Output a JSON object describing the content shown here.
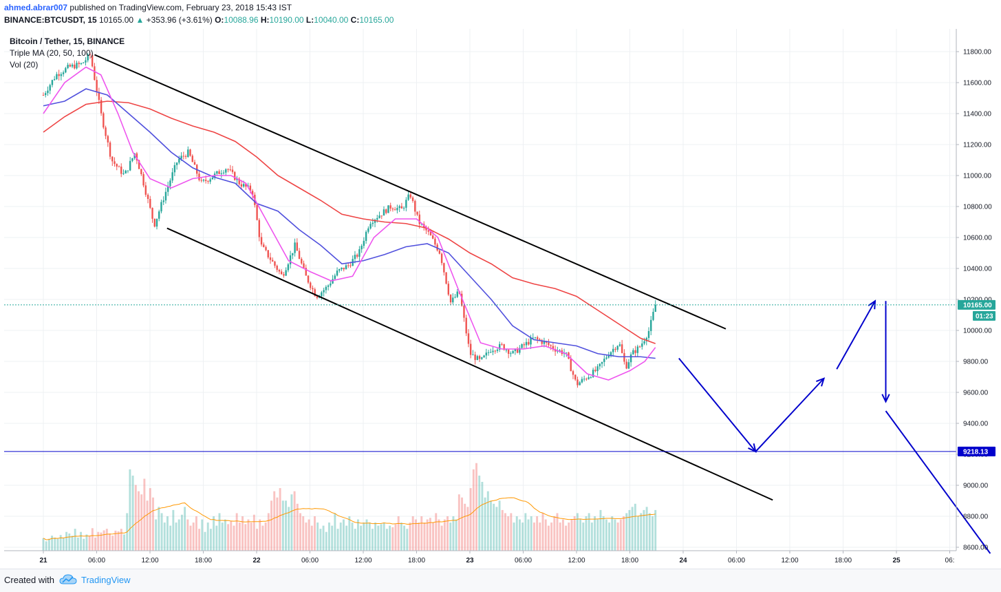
{
  "header": {
    "author": "ahmed.abrar007",
    "published": "published on TradingView.com, February 23, 2018 15:43 IST",
    "symbol": "BINANCE:BTCUSDT, 15",
    "last": "10165.00",
    "change_arrow": "▲",
    "change": "+353.96 (+3.61%)",
    "o_label": "O:",
    "o": "10088.96",
    "h_label": "H:",
    "h": "10190.00",
    "l_label": "L:",
    "l": "10040.00",
    "c_label": "C:",
    "c": "10165.00"
  },
  "footer": {
    "created_with": "Created with",
    "brand": "TradingView",
    "logo_icon": "tradingview-cloud-icon"
  },
  "colors": {
    "up": "#26a69a",
    "down": "#ef5350",
    "ma20": "#ee55ee",
    "ma50": "#5050dd",
    "ma100": "#ee4444",
    "channel": "#000000",
    "projection": "#0000cc",
    "price_line": "#26a69a",
    "support_line": "#0000cc"
  },
  "chart_data": {
    "type": "candlestick",
    "title": "Bitcoin / Tether, 15, BINANCE",
    "legend": [
      "Bitcoin / Tether, 15, BINANCE",
      "Triple MA (20, 50, 100)",
      "Vol (20)"
    ],
    "ylim": [
      8550,
      11900
    ],
    "y_ticks": [
      "11800.00",
      "11600.00",
      "11400.00",
      "11200.00",
      "11000.00",
      "10800.00",
      "10600.00",
      "10400.00",
      "10200.00",
      "10000.00",
      "9800.00",
      "9600.00",
      "9400.00",
      "9200.00",
      "9000.00",
      "8800.00",
      "8600.00"
    ],
    "x_ticks": [
      "21",
      "06:00",
      "12:00",
      "18:00",
      "22",
      "06:00",
      "12:00",
      "18:00",
      "23",
      "06:00",
      "12:00",
      "18:00",
      "24",
      "06:00",
      "12:00",
      "18:00",
      "25",
      "06:"
    ],
    "last_price": {
      "label": "10165.00",
      "value": 10165,
      "countdown": "01:23"
    },
    "support": {
      "label": "9218.13",
      "value": 9218.13
    },
    "price_path": [
      [
        0,
        11520
      ],
      [
        0.06,
        11650
      ],
      [
        0.12,
        11700
      ],
      [
        0.18,
        11720
      ],
      [
        0.22,
        11780
      ],
      [
        0.27,
        11400
      ],
      [
        0.32,
        11100
      ],
      [
        0.38,
        11000
      ],
      [
        0.43,
        11150
      ],
      [
        0.47,
        10950
      ],
      [
        0.52,
        10680
      ],
      [
        0.57,
        10880
      ],
      [
        0.63,
        11100
      ],
      [
        0.68,
        11150
      ],
      [
        0.74,
        10950
      ],
      [
        0.8,
        11000
      ],
      [
        0.86,
        11050
      ],
      [
        0.92,
        10950
      ],
      [
        0.98,
        10900
      ],
      [
        1.02,
        10550
      ],
      [
        1.07,
        10450
      ],
      [
        1.12,
        10350
      ],
      [
        1.18,
        10550
      ],
      [
        1.23,
        10350
      ],
      [
        1.28,
        10220
      ],
      [
        1.33,
        10280
      ],
      [
        1.38,
        10380
      ],
      [
        1.43,
        10420
      ],
      [
        1.48,
        10500
      ],
      [
        1.53,
        10700
      ],
      [
        1.58,
        10750
      ],
      [
        1.63,
        10800
      ],
      [
        1.68,
        10780
      ],
      [
        1.72,
        10880
      ],
      [
        1.76,
        10700
      ],
      [
        1.81,
        10620
      ],
      [
        1.86,
        10500
      ],
      [
        1.91,
        10180
      ],
      [
        1.95,
        10250
      ],
      [
        2.0,
        9850
      ],
      [
        2.05,
        9800
      ],
      [
        2.1,
        9880
      ],
      [
        2.15,
        9900
      ],
      [
        2.2,
        9850
      ],
      [
        2.25,
        9900
      ],
      [
        2.3,
        9950
      ],
      [
        2.35,
        9920
      ],
      [
        2.4,
        9880
      ],
      [
        2.45,
        9850
      ],
      [
        2.5,
        9650
      ],
      [
        2.55,
        9700
      ],
      [
        2.6,
        9750
      ],
      [
        2.65,
        9850
      ],
      [
        2.7,
        9920
      ],
      [
        2.73,
        9760
      ],
      [
        2.76,
        9850
      ],
      [
        2.8,
        9900
      ],
      [
        2.84,
        10000
      ],
      [
        2.87,
        10165
      ]
    ],
    "ma20": [
      [
        0,
        11400
      ],
      [
        0.1,
        11600
      ],
      [
        0.2,
        11700
      ],
      [
        0.27,
        11650
      ],
      [
        0.35,
        11400
      ],
      [
        0.42,
        11150
      ],
      [
        0.5,
        10980
      ],
      [
        0.6,
        10920
      ],
      [
        0.7,
        10980
      ],
      [
        0.8,
        11000
      ],
      [
        0.88,
        11000
      ],
      [
        0.95,
        10950
      ],
      [
        1.05,
        10700
      ],
      [
        1.15,
        10450
      ],
      [
        1.25,
        10380
      ],
      [
        1.35,
        10320
      ],
      [
        1.45,
        10350
      ],
      [
        1.55,
        10600
      ],
      [
        1.65,
        10720
      ],
      [
        1.75,
        10720
      ],
      [
        1.85,
        10600
      ],
      [
        1.95,
        10250
      ],
      [
        2.05,
        9920
      ],
      [
        2.15,
        9880
      ],
      [
        2.25,
        9880
      ],
      [
        2.35,
        9900
      ],
      [
        2.45,
        9850
      ],
      [
        2.55,
        9720
      ],
      [
        2.65,
        9680
      ],
      [
        2.75,
        9740
      ],
      [
        2.82,
        9800
      ],
      [
        2.87,
        9890
      ]
    ],
    "ma50": [
      [
        0,
        11450
      ],
      [
        0.1,
        11480
      ],
      [
        0.2,
        11560
      ],
      [
        0.3,
        11520
      ],
      [
        0.4,
        11400
      ],
      [
        0.5,
        11280
      ],
      [
        0.6,
        11150
      ],
      [
        0.7,
        11050
      ],
      [
        0.8,
        10990
      ],
      [
        0.9,
        10950
      ],
      [
        1.0,
        10820
      ],
      [
        1.1,
        10770
      ],
      [
        1.2,
        10650
      ],
      [
        1.3,
        10550
      ],
      [
        1.4,
        10430
      ],
      [
        1.5,
        10450
      ],
      [
        1.6,
        10490
      ],
      [
        1.7,
        10540
      ],
      [
        1.8,
        10560
      ],
      [
        1.9,
        10500
      ],
      [
        2.0,
        10350
      ],
      [
        2.1,
        10200
      ],
      [
        2.2,
        10030
      ],
      [
        2.3,
        9940
      ],
      [
        2.4,
        9920
      ],
      [
        2.5,
        9900
      ],
      [
        2.6,
        9850
      ],
      [
        2.7,
        9830
      ],
      [
        2.8,
        9830
      ],
      [
        2.87,
        9820
      ]
    ],
    "ma100": [
      [
        0,
        11280
      ],
      [
        0.1,
        11380
      ],
      [
        0.2,
        11460
      ],
      [
        0.3,
        11480
      ],
      [
        0.4,
        11470
      ],
      [
        0.5,
        11430
      ],
      [
        0.6,
        11370
      ],
      [
        0.7,
        11320
      ],
      [
        0.8,
        11280
      ],
      [
        0.9,
        11220
      ],
      [
        1.0,
        11120
      ],
      [
        1.1,
        11000
      ],
      [
        1.2,
        10920
      ],
      [
        1.3,
        10840
      ],
      [
        1.4,
        10750
      ],
      [
        1.5,
        10720
      ],
      [
        1.6,
        10700
      ],
      [
        1.7,
        10690
      ],
      [
        1.8,
        10660
      ],
      [
        1.9,
        10590
      ],
      [
        2.0,
        10500
      ],
      [
        2.1,
        10430
      ],
      [
        2.2,
        10340
      ],
      [
        2.3,
        10300
      ],
      [
        2.4,
        10270
      ],
      [
        2.5,
        10220
      ],
      [
        2.6,
        10130
      ],
      [
        2.7,
        10040
      ],
      [
        2.8,
        9950
      ],
      [
        2.87,
        9915
      ]
    ],
    "channel_upper": [
      [
        0.24,
        11780
      ],
      [
        3.2,
        10010
      ]
    ],
    "channel_lower": [
      [
        0.58,
        10660
      ],
      [
        3.42,
        8905
      ]
    ],
    "projection_path": [
      [
        2.98,
        9820
      ],
      [
        3.34,
        9218
      ],
      [
        3.66,
        9690
      ]
    ],
    "projection_path2": [
      [
        3.72,
        9750
      ],
      [
        3.9,
        10190
      ]
    ],
    "projection_drop": [
      [
        3.95,
        10190
      ],
      [
        3.95,
        9540
      ]
    ],
    "projection_path3": [
      [
        3.95,
        9480
      ],
      [
        4.44,
        8560
      ]
    ],
    "volume": {
      "max": 440,
      "values": [
        40,
        30,
        38,
        48,
        42,
        38,
        50,
        40,
        60,
        55,
        48,
        70,
        42,
        60,
        38,
        52,
        46,
        72,
        42,
        60,
        58,
        65,
        70,
        55,
        48,
        64,
        62,
        70,
        52,
        120,
        260,
        240,
        210,
        190,
        180,
        230,
        160,
        200,
        170,
        100,
        140,
        120,
        90,
        110,
        80,
        130,
        90,
        100,
        115,
        140,
        100,
        80,
        90,
        110,
        70,
        100,
        60,
        90,
        70,
        110,
        80,
        120,
        90,
        100,
        85,
        95,
        80,
        120,
        90,
        110,
        85,
        100,
        90,
        115,
        70,
        100,
        80,
        90,
        120,
        160,
        190,
        170,
        200,
        160,
        160,
        140,
        180,
        190,
        150,
        120,
        110,
        90,
        100,
        80,
        110,
        90,
        70,
        80,
        60,
        90,
        80,
        120,
        70,
        90,
        100,
        80,
        110,
        90,
        70,
        100,
        80,
        90,
        100,
        90,
        70,
        90,
        80,
        85,
        90,
        70,
        80,
        75,
        85,
        110,
        90,
        80,
        70,
        90,
        110,
        100,
        90,
        110,
        90,
        100,
        105,
        90,
        120,
        100,
        80,
        100,
        110,
        90,
        110,
        100,
        180,
        170,
        150,
        140,
        200,
        260,
        280,
        240,
        220,
        170,
        190,
        160,
        150,
        140,
        160,
        130,
        120,
        110,
        120,
        90,
        110,
        100,
        90,
        120,
        100,
        110,
        90,
        110,
        90,
        120,
        100,
        80,
        90,
        110,
        120,
        90,
        100,
        80,
        90,
        100,
        110,
        120,
        100,
        90,
        110,
        120,
        90,
        110,
        100,
        130,
        110,
        100,
        90,
        110,
        100,
        90,
        100,
        110,
        120,
        130,
        140,
        150,
        110,
        120,
        130,
        140,
        120,
        110,
        130
      ]
    }
  }
}
